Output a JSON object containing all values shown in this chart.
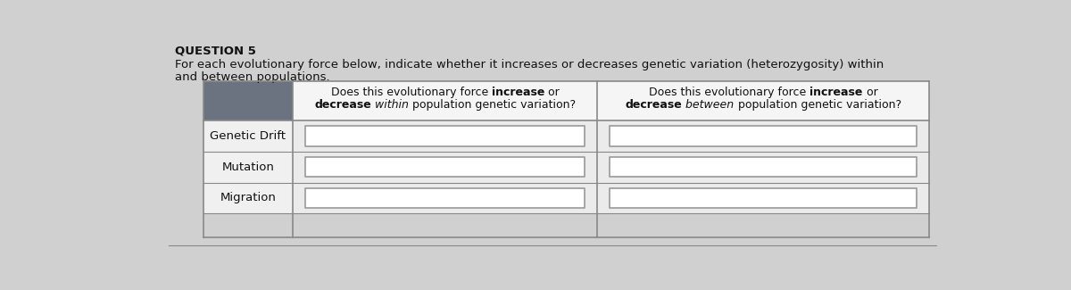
{
  "title": "QUESTION 5",
  "desc1": "For each evolutionary force below, indicate whether it increases or decreases genetic variation (heterozygosity) within",
  "desc2": "and between populations.",
  "col1_h1_parts": [
    [
      "Does this evolutionary force ",
      false,
      false
    ],
    [
      "increase",
      true,
      false
    ],
    [
      " or",
      false,
      false
    ]
  ],
  "col1_h2_parts": [
    [
      "decrease",
      true,
      false
    ],
    [
      " within",
      false,
      true
    ],
    [
      " population genetic variation?",
      false,
      false
    ]
  ],
  "col2_h1_parts": [
    [
      "Does this evolutionary force ",
      false,
      false
    ],
    [
      "increase",
      true,
      false
    ],
    [
      " or",
      false,
      false
    ]
  ],
  "col2_h2_parts": [
    [
      "decrease",
      true,
      false
    ],
    [
      " between",
      false,
      true
    ],
    [
      " population genetic variation?",
      false,
      false
    ]
  ],
  "rows": [
    "Genetic Drift",
    "Mutation",
    "Migration"
  ],
  "header_left_bg": "#6b7280",
  "header_right_bg": "#f5f5f5",
  "row_label_bg": "#f0f0f0",
  "data_cell_bg": "#ebebeb",
  "answer_box_bg": "#ffffff",
  "answer_box_border": "#999999",
  "table_border_color": "#888888",
  "page_bg": "#d0d0d0",
  "title_color": "#111111",
  "desc_color": "#111111",
  "header_text_color": "#111111",
  "row_label_color": "#111111",
  "title_fontsize": 9.5,
  "desc_fontsize": 9.5,
  "header_fontsize": 9.0,
  "row_fontsize": 9.5
}
